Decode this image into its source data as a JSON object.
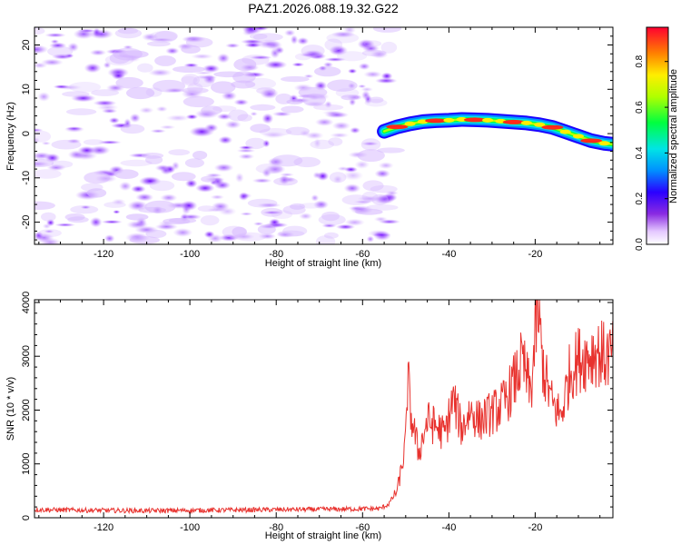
{
  "title": "PAZ1.2026.088.19.32.G22",
  "chart_data": [
    {
      "type": "heatmap",
      "xlabel": "Height of straight line (km)",
      "ylabel": "Frequency (Hz)",
      "xlim": [
        -136,
        -2
      ],
      "ylim": [
        -25,
        24
      ],
      "x_ticks": [
        -120,
        -100,
        -80,
        -60,
        -40,
        -20
      ],
      "y_ticks": [
        -20,
        -10,
        0,
        10,
        20
      ],
      "noise_region_x": [
        -136,
        -53
      ],
      "signal_track": {
        "x": [
          -55,
          -52,
          -49,
          -46,
          -43,
          -40,
          -37,
          -34,
          -31,
          -28,
          -25,
          -22,
          -19,
          -16,
          -13,
          -10,
          -7,
          -4,
          -2
        ],
        "freq": [
          0.5,
          1.5,
          2.2,
          2.7,
          2.9,
          3.0,
          3.2,
          3.1,
          3.0,
          2.8,
          2.6,
          2.4,
          2.0,
          1.4,
          0.4,
          -0.6,
          -1.6,
          -2.2,
          -2.4
        ]
      },
      "colorbar": {
        "label": "Normalized spectral amplitude",
        "range": [
          0,
          0.95
        ],
        "ticks": [
          0.0,
          0.2,
          0.4,
          0.6,
          0.8
        ],
        "tick_labels": [
          "0.0",
          "0.2",
          "0.4",
          "0.6",
          "0.8"
        ]
      }
    },
    {
      "type": "line",
      "xlabel": "Height of straight line (km)",
      "ylabel": "SNR (10 * v/v)",
      "xlim": [
        -136,
        -2
      ],
      "ylim": [
        0,
        4050
      ],
      "x_ticks": [
        -120,
        -100,
        -80,
        -60,
        -40,
        -20
      ],
      "y_ticks": [
        0,
        1000,
        2000,
        3000,
        4000
      ],
      "color": "#e8322e",
      "series": [
        {
          "name": "SNR",
          "x": [
            -136,
            -125,
            -110,
            -95,
            -80,
            -65,
            -56,
            -54,
            -52,
            -51,
            -50,
            -49.5,
            -49,
            -48,
            -47,
            -46,
            -45,
            -43,
            -41,
            -39,
            -37,
            -35,
            -33,
            -31,
            -29,
            -27,
            -25,
            -23,
            -21,
            -19.5,
            -18,
            -16,
            -14,
            -12,
            -10,
            -8,
            -6,
            -4,
            -2
          ],
          "values": [
            150,
            140,
            130,
            140,
            150,
            160,
            170,
            250,
            500,
            900,
            1400,
            2700,
            2000,
            1600,
            1200,
            1500,
            1800,
            1700,
            1550,
            2200,
            1650,
            2000,
            1800,
            1900,
            2000,
            2150,
            2500,
            2900,
            2300,
            3900,
            2700,
            2100,
            1900,
            2700,
            2950,
            3000,
            3100,
            3000,
            3000
          ]
        }
      ]
    }
  ]
}
